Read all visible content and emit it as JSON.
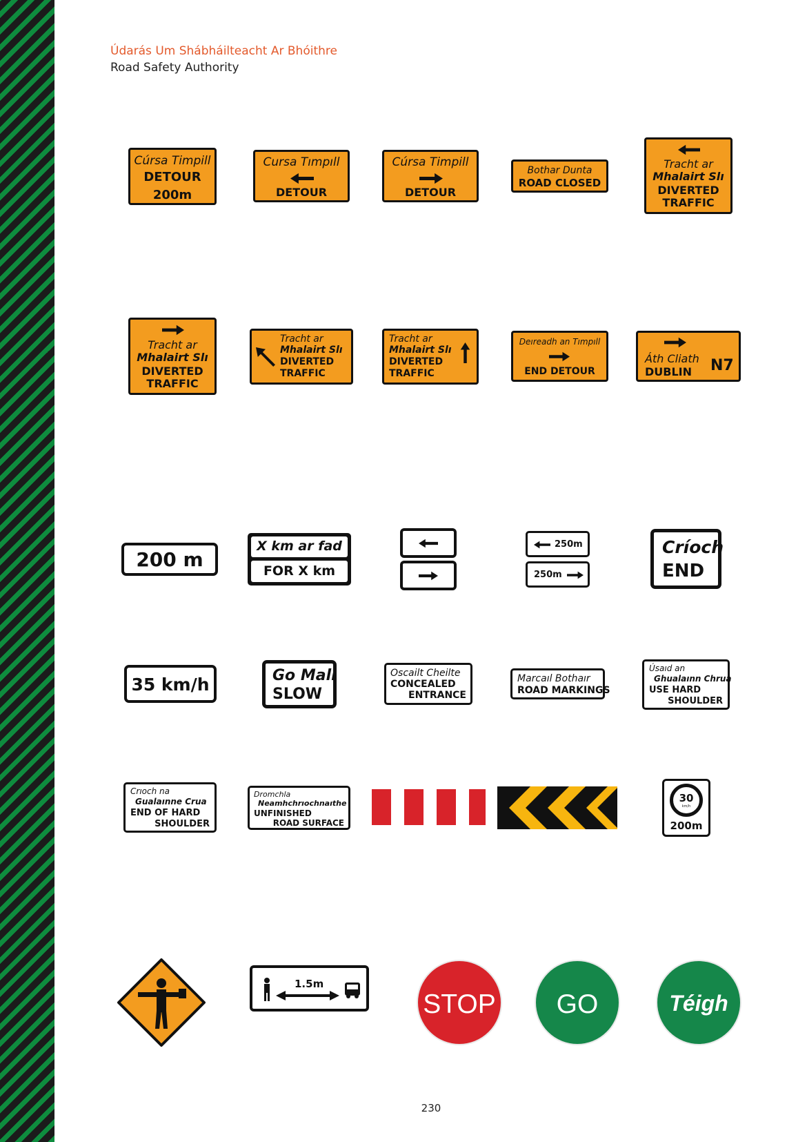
{
  "header": {
    "line1": "Údarás Um Shábháilteacht Ar Bhóithre",
    "line2": "Road Safety Authority"
  },
  "page_number": "230",
  "signs": {
    "r1s1": {
      "irish": "Cúrsa Timpill",
      "english": "DETOUR",
      "dist": "200m"
    },
    "r1s2": {
      "irish": "Cursa Tımpıll",
      "english": "DETOUR"
    },
    "r1s3": {
      "irish": "Cúrsa Timpill",
      "english": "DETOUR"
    },
    "r1s4": {
      "irish": "Bothar Dunta",
      "english": "ROAD CLOSED"
    },
    "r1s5": {
      "irish1": "Tracht ar",
      "irish2": "Mhalairt Slı",
      "english1": "DIVERTED",
      "english2": "TRAFFIC"
    },
    "r2s1": {
      "irish1": "Tracht ar",
      "irish2": "Mhalairt Slı",
      "english1": "DIVERTED",
      "english2": "TRAFFIC"
    },
    "r2s2": {
      "irish1": "Tracht ar",
      "irish2": "Mhalairt Slı",
      "english1": "DIVERTED",
      "english2": "TRAFFIC"
    },
    "r2s3": {
      "irish1": "Tracht ar",
      "irish2": "Mhalairt Slı",
      "english1": "DIVERTED",
      "english2": "TRAFFIC"
    },
    "r2s4": {
      "irish": "Deıreadh an Tımpıll",
      "english": "END DETOUR"
    },
    "r2s5": {
      "irish": "Áth Cliath",
      "english": "DUBLIN",
      "route": "N7"
    },
    "r3s1": {
      "text": "200 m"
    },
    "r3s2": {
      "irish": "X km ar fad",
      "english": "FOR X km"
    },
    "r3s4": {
      "top": "250m",
      "bottom": "250m"
    },
    "r3s5": {
      "irish": "Críoch",
      "english": "END"
    },
    "r4s1": {
      "text": "35 km/h"
    },
    "r4s2": {
      "irish": "Go Mall",
      "english": "SLOW"
    },
    "r4s3": {
      "irish": "Oscailt Cheilte",
      "english1": "CONCEALED",
      "english2": "ENTRANCE"
    },
    "r4s4": {
      "irish": "Marcaıl Bothaır",
      "english": "ROAD MARKINGS"
    },
    "r4s5": {
      "irish1": "Úsaıd an",
      "irish2": "Ghualaınn Chrua",
      "english1": "USE HARD",
      "english2": "SHOULDER"
    },
    "r5s1": {
      "irish1": "Crıoch na",
      "irish2": "Gualaınne Crua",
      "english1": "END OF HARD",
      "english2": "SHOULDER"
    },
    "r5s2": {
      "irish1": "Dromchla",
      "irish2": "Neamhchrıochnaıthe",
      "english1": "UNFINISHED",
      "english2": "ROAD SURFACE"
    },
    "r5s5": {
      "limit": "30",
      "unit": "km/h",
      "dist": "200m"
    },
    "r6s2": {
      "dist": "1.5m"
    },
    "r6s3": {
      "text": "STOP"
    },
    "r6s4": {
      "text": "GO"
    },
    "r6s5": {
      "text": "Téigh"
    }
  },
  "colors": {
    "orange": "#f39c1f",
    "red": "#d8232a",
    "green": "#15874a",
    "yellow": "#f7b50f",
    "black": "#111111"
  }
}
